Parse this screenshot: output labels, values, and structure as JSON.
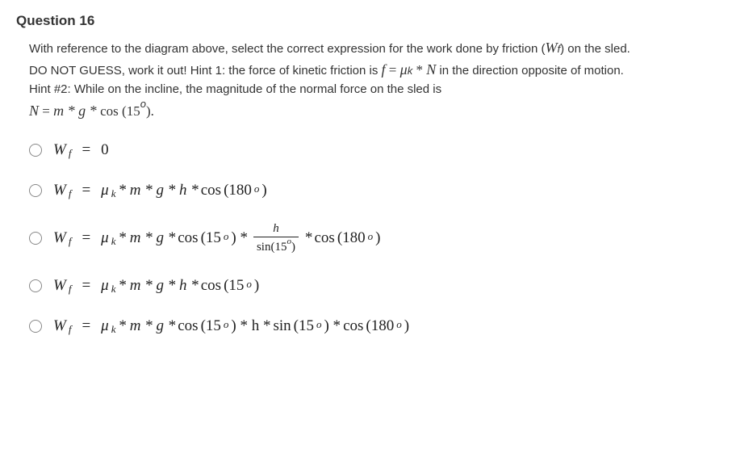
{
  "question": {
    "title": "Question 16",
    "prompt_parts": {
      "p1": "With reference to the diagram above, select the correct expression for the work done by friction (",
      "wf": "W",
      "wf_sub": "f",
      "p2": ") on the sled. DO NOT GUESS, work it out! Hint 1: the force of kinetic friction is ",
      "f_var": "f",
      "f_eq": " = ",
      "mu": "μ",
      "mu_sub": "k",
      "f_star": " * ",
      "N_var": "N",
      "p3": " in the direction opposite of motion. Hint #2: While on the incline, the magnitude of the normal force on the sled is ",
      "N_var2": "N",
      "N_eq": " = ",
      "N_expr": "m * g * ",
      "N_cos": "cos",
      "N_open": " (15",
      "N_deg": "o",
      "N_close": ")."
    }
  },
  "options": [
    {
      "lhs_W": "W",
      "lhs_sub": "f",
      "eq": "=",
      "rhs": "0",
      "type": "simple"
    },
    {
      "lhs_W": "W",
      "lhs_sub": "f",
      "eq": "=",
      "mu": "μ",
      "mu_sub": "k",
      "expr_mid": " * m * g * h * ",
      "cos": "cos",
      "arg_open": " (180",
      "deg": "o",
      "arg_close": ")",
      "type": "expr1"
    },
    {
      "lhs_W": "W",
      "lhs_sub": "f",
      "eq": "=",
      "mu": "μ",
      "mu_sub": "k",
      "expr_mid": " * m * g * ",
      "cos1": "cos",
      "arg1_open": " (15",
      "deg1": "o",
      "arg1_close": ") * ",
      "frac_num": "h",
      "frac_den_sin": "sin",
      "frac_den_open": "(15",
      "frac_den_deg": "o",
      "frac_den_close": ")",
      "after_frac": " * ",
      "cos2": "cos",
      "arg2_open": " (180",
      "deg2": "o",
      "arg2_close": ")",
      "type": "frac"
    },
    {
      "lhs_W": "W",
      "lhs_sub": "f",
      "eq": "=",
      "mu": "μ",
      "mu_sub": "k",
      "expr_mid": " * m * g * h * ",
      "cos": "cos",
      "arg_open": " (15",
      "deg": "o",
      "arg_close": ")",
      "type": "expr1"
    },
    {
      "lhs_W": "W",
      "lhs_sub": "f",
      "eq": "=",
      "mu": "μ",
      "mu_sub": "k",
      "expr_mid": " * m * g * ",
      "cos1": "cos",
      "arg1_open": " (15",
      "deg1": "o",
      "arg1_close": ") * h * ",
      "sin": "sin",
      "arg2_open": " (15",
      "deg2": "o",
      "arg2_close": ") * ",
      "cos2": "cos",
      "arg3_open": " (180",
      "deg3": "o",
      "arg3_close": ")",
      "type": "expr2"
    }
  ],
  "colors": {
    "text": "#333333",
    "math": "#222222",
    "radio_border": "#888888",
    "background": "#ffffff"
  }
}
